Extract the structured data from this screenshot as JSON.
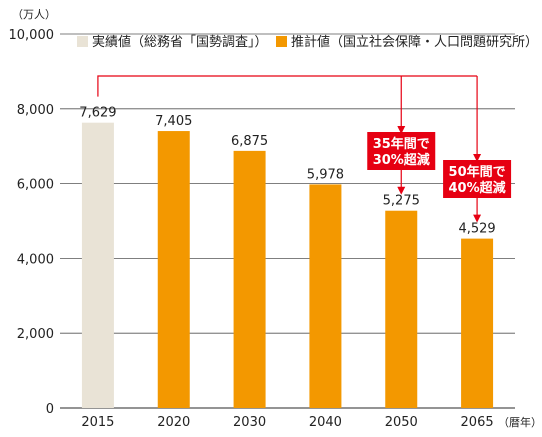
{
  "chart_data": {
    "type": "bar",
    "y_unit": "（万人）",
    "x_unit": "（暦年）",
    "categories": [
      "2015",
      "2020",
      "2030",
      "2040",
      "2050",
      "2065"
    ],
    "values": [
      7629,
      7405,
      6875,
      5978,
      5275,
      4529
    ],
    "value_labels": [
      "7,629",
      "7,405",
      "6,875",
      "5,978",
      "5,275",
      "4,529"
    ],
    "ylim": [
      0,
      10000
    ],
    "yticks": [
      0,
      2000,
      4000,
      6000,
      8000,
      10000
    ],
    "ytick_labels": [
      "0",
      "2,000",
      "4,000",
      "6,000",
      "8,000",
      "10,000"
    ],
    "grid": true,
    "legend_position": "top",
    "series": [
      {
        "name": "実績値（総務省「国勢調査」）",
        "color": "#e9e3d6",
        "categories": [
          "2015"
        ]
      },
      {
        "name": "推計値（国立社会保障・人口問題研究所）",
        "color": "#f39800",
        "categories": [
          "2020",
          "2030",
          "2040",
          "2050",
          "2065"
        ]
      }
    ],
    "annotations": [
      {
        "line1": "35年間で",
        "line2": "30%超減",
        "from": "2015",
        "to": "2050"
      },
      {
        "line1": "50年間で",
        "line2": "40%超減",
        "from": "2015",
        "to": "2065"
      }
    ],
    "annotation_color": "#e60012"
  }
}
